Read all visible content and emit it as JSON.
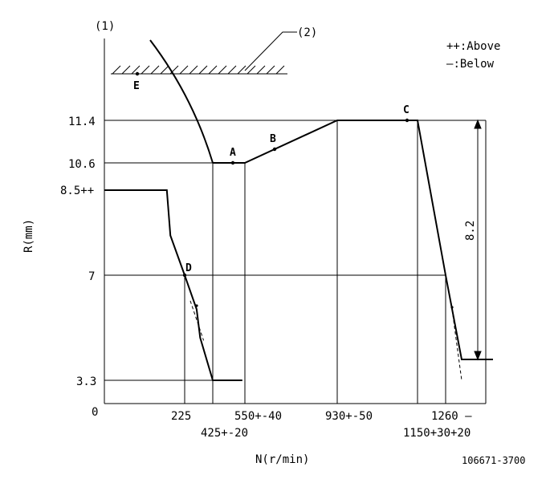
{
  "figure_number": "(1)",
  "callout": "(2)",
  "legend": [
    {
      "symbol": "++",
      "text": ":Above"
    },
    {
      "symbol": "—",
      "text": ":Below"
    }
  ],
  "drawing_number": "106671-3700",
  "chart_data": {
    "type": "line",
    "title": "",
    "xlabel": "N(r/min)",
    "ylabel": "R(mm)",
    "origin_label": "0",
    "x_tick_labels": [
      "225",
      "425+-20",
      "550+-40",
      "930+-50",
      "1150+30+20",
      "1260 —"
    ],
    "y_tick_labels": [
      "11.4",
      "10.6",
      "8.5++",
      "7",
      "3.3"
    ],
    "points": [
      {
        "label": "A",
        "x": 500,
        "y": 10.6
      },
      {
        "label": "B",
        "x": 650,
        "y": 10.9
      },
      {
        "label": "C",
        "x": 1130,
        "y": 11.4
      },
      {
        "label": "D",
        "x": 225,
        "y": 7
      },
      {
        "label": "E",
        "x": 120
      }
    ],
    "dimension": {
      "label": "8.2",
      "from": 11.4,
      "to": 3.2
    },
    "series": [
      {
        "style": "solid-bold",
        "x": [
          425,
          550,
          930,
          1150,
          1260,
          1330
        ],
        "y": [
          10.6,
          10.6,
          11.4,
          11.4,
          7,
          3.2
        ]
      },
      {
        "style": "solid-bold",
        "x": [
          0,
          175,
          185,
          225,
          310,
          335,
          425,
          540
        ],
        "y": [
          8.5,
          8.5,
          7.7,
          7,
          5.8,
          4.8,
          3.3,
          3.3
        ]
      },
      {
        "style": "dashed",
        "x": [
          265,
          360
        ],
        "y": [
          6.1,
          4.7
        ]
      },
      {
        "style": "dashed",
        "x": [
          1285,
          1330
        ],
        "y": [
          6.0,
          3.3
        ]
      }
    ]
  }
}
